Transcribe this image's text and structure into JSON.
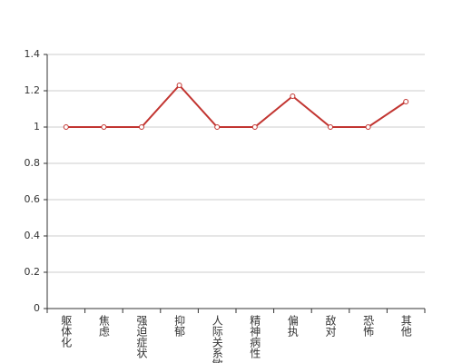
{
  "chart_data": {
    "type": "line",
    "categories": [
      "躯体化",
      "焦虑",
      "强迫症状",
      "抑郁",
      "人际关系敏感",
      "精神病性",
      "偏执",
      "敌对",
      "恐怖",
      "其他"
    ],
    "series": [
      {
        "color": "#c23531",
        "values": [
          1,
          1,
          1,
          1.23,
          1,
          1,
          1.17,
          1,
          1,
          1.14
        ]
      }
    ],
    "ylim": [
      0,
      1.4
    ],
    "yticks": [
      0,
      0.2,
      0.4,
      0.6,
      0.8,
      1,
      1.2,
      1.4
    ],
    "grid": true
  }
}
